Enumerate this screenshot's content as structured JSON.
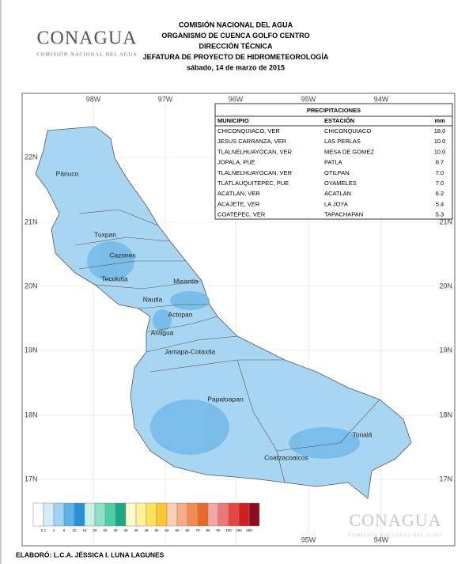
{
  "header": {
    "lines": [
      "COMISIÓN NACIONAL DEL AGUA",
      "ORGANISMO DE CUENCA GOLFO CENTRO",
      "DIRECCIÓN TÉCNICA",
      "JEFATURA DE PROYECTO DE HIDROMETEOROLOGÍA",
      "sábado, 14 de marzo de 2015"
    ]
  },
  "logo": {
    "name": "CONAGUA",
    "subtitle": "COMISIÓN NACIONAL DEL AGUA"
  },
  "map": {
    "longitudes": [
      "98W",
      "97W",
      "96W",
      "95W",
      "94W"
    ],
    "latitudes": [
      "22N",
      "21N",
      "20N",
      "19N",
      "18N",
      "17N"
    ],
    "regions": [
      "Pánuco",
      "Tuxpan",
      "Cazones",
      "Tecolutla",
      "Misantla",
      "Nautla",
      "Actopan",
      "Antigua",
      "Jamapa-Cotaxtla",
      "Papaloapan",
      "Tonalá",
      "Coatzacoalcos"
    ]
  },
  "table": {
    "title": "PRECIPITACIONES",
    "columns": [
      "MUNICIPIO",
      "ESTACIÓN",
      "mm"
    ],
    "rows": [
      [
        "CHICONQUIACO, VER",
        "CHICONQUIACO",
        "18.0"
      ],
      [
        "JESUS CARRANZA, VER",
        "LAS PERLAS",
        "10.0"
      ],
      [
        "TLALNELHUAYOCAN, VER",
        "MESA DE GOMEZ",
        "10.0"
      ],
      [
        "JOPALA, PUE",
        "PATLA",
        "8.7"
      ],
      [
        "TLALNELHUAYOCAN, VER",
        "OTILPAN",
        "7.0"
      ],
      [
        "TLATLAUQUITEPEC, PUE",
        "OYAMELES",
        "7.0"
      ],
      [
        "ACATLAN, VER",
        "ACATLAN",
        "6.2"
      ],
      [
        "ACAJETE, VER",
        "LA JOYA",
        "5.4"
      ],
      [
        "COATEPEC, VER",
        "TAPACHAPAN",
        "5.3"
      ]
    ]
  },
  "legend": {
    "labels": [
      "0.1",
      "1",
      "5",
      "10",
      "15",
      "20",
      "25",
      "30",
      "35",
      "40",
      "45",
      "50",
      "55",
      "60",
      "65",
      "70",
      "80",
      "90",
      "100",
      "200",
      "300"
    ],
    "colors": [
      "#ffffff",
      "#d6ecfa",
      "#9fd3f3",
      "#5ab4e8",
      "#2a8fd6",
      "#c9f0e4",
      "#8fe0c6",
      "#4ccfa6",
      "#1aa886",
      "#fffbd0",
      "#fff39a",
      "#ffe45a",
      "#ffc830",
      "#fbd2b4",
      "#f7ac84",
      "#f38a4e",
      "#e96a26",
      "#f4a6a6",
      "#ef7676",
      "#e84444",
      "#d01f1f",
      "#8c0b1e"
    ]
  },
  "footer": "ELABORÓ: L.C.A. JÉSSICA I. LUNA LAGUNES"
}
